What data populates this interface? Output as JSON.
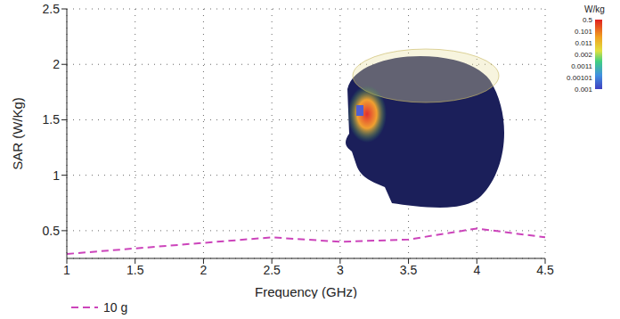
{
  "chart_data": {
    "type": "line",
    "x_label": "Frequency (GHz)",
    "y_label": "SAR (W/Kg)",
    "x": [
      1,
      1.5,
      2,
      2.5,
      3,
      3.5,
      4,
      4.5
    ],
    "series": [
      {
        "name": "10 g",
        "color": "#cc44bb",
        "values": [
          0.29,
          0.34,
          0.39,
          0.44,
          0.4,
          0.42,
          0.52,
          0.44
        ],
        "line_style": "dashed"
      }
    ],
    "xlim": [
      1,
      4.5
    ],
    "xticks": [
      1,
      1.5,
      2,
      2.5,
      3,
      3.5,
      4,
      4.5
    ],
    "ylim": [
      0.25,
      2.5
    ],
    "yticks": [
      0.5,
      1,
      1.5,
      2,
      2.5
    ],
    "grid": true,
    "legend": "bottom left",
    "colorbar": {
      "title": "W/kg",
      "ticks": [
        0.5,
        0.101,
        0.011,
        0.002,
        0.0011,
        0.00101,
        0.001
      ]
    }
  }
}
